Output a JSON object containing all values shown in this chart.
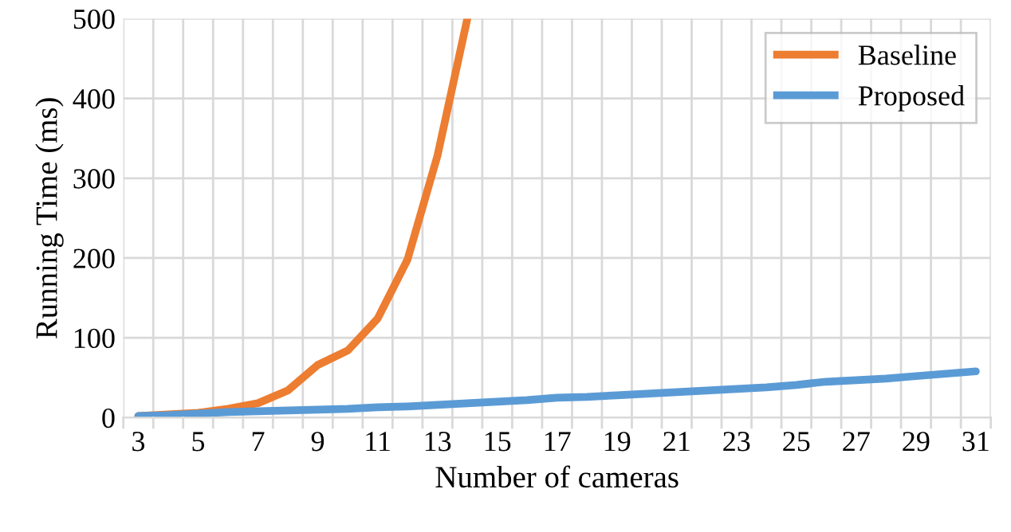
{
  "chart_data": {
    "type": "line",
    "xlabel": "Number of cameras",
    "ylabel": "Running Time (ms)",
    "categories": [
      "3",
      null,
      "5",
      null,
      "7",
      null,
      "9",
      null,
      "11",
      null,
      "13",
      null,
      "15",
      null,
      "17",
      null,
      "19",
      null,
      "21",
      null,
      "23",
      null,
      "25",
      null,
      "27",
      null,
      "29",
      null,
      "31"
    ],
    "series": [
      {
        "name": "Baseline",
        "color": "#ed7d31",
        "values": [
          2,
          4,
          6,
          11,
          18,
          34,
          66,
          84,
          124,
          198,
          328,
          500,
          null,
          null,
          null,
          null,
          null,
          null,
          null,
          null,
          null,
          null,
          null,
          null,
          null,
          null,
          null,
          null,
          null
        ]
      },
      {
        "name": "Proposed",
        "color": "#5b9bd5",
        "values": [
          2,
          3,
          5,
          7,
          8,
          9,
          10,
          11,
          13,
          14,
          16,
          18,
          20,
          22,
          25,
          26,
          28,
          30,
          32,
          34,
          36,
          38,
          41,
          45,
          47,
          49,
          52,
          55,
          58
        ]
      }
    ],
    "ylim": [
      0,
      500
    ],
    "yticks": [
      0,
      100,
      200,
      300,
      400,
      500
    ],
    "grid": true,
    "legend": "top right",
    "marker": "none",
    "line_style": "solid"
  }
}
